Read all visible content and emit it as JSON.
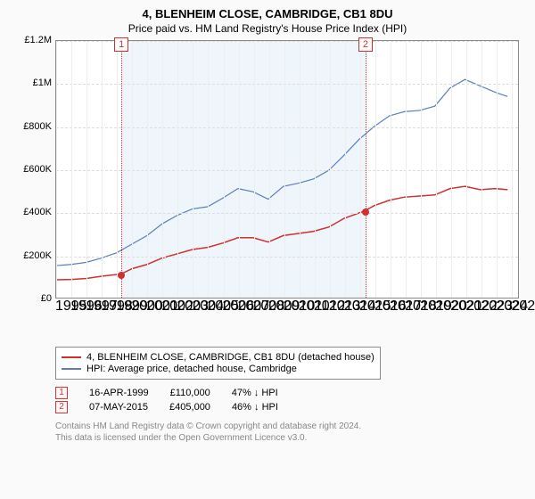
{
  "title": "4, BLENHEIM CLOSE, CAMBRIDGE, CB1 8DU",
  "subtitle": "Price paid vs. HM Land Registry's House Price Index (HPI)",
  "chart": {
    "type": "line",
    "x_years": [
      1995,
      1996,
      1997,
      1998,
      1999,
      2000,
      2001,
      2002,
      2003,
      2004,
      2005,
      2006,
      2007,
      2008,
      2009,
      2010,
      2011,
      2012,
      2013,
      2014,
      2015,
      2016,
      2017,
      2018,
      2019,
      2020,
      2021,
      2022,
      2023,
      2024,
      2025
    ],
    "xlim": [
      1995,
      2025.5
    ],
    "ylim": [
      0,
      1200000
    ],
    "ytick_step": 200000,
    "ytick_labels": [
      "£0",
      "£200K",
      "£400K",
      "£600K",
      "£800K",
      "£1M",
      "£1.2M"
    ],
    "background_color": "#ffffff",
    "grid_color": "#eeeeee",
    "grid_dash_color": "#dddddd",
    "axis_color": "#888888",
    "title_fontsize": 13,
    "subtitle_fontsize": 12,
    "axis_fontsize": 11,
    "shade_band": {
      "start_year": 1999.3,
      "end_year": 2015.35,
      "color": "#cfe2f3",
      "opacity": 0.35
    },
    "series": [
      {
        "name": "price_paid",
        "label": "4, BLENHEIM CLOSE, CAMBRIDGE, CB1 8DU (detached house)",
        "color": "#d32f2f",
        "line_width": 1.5,
        "data": [
          [
            1995,
            83000
          ],
          [
            1996,
            85000
          ],
          [
            1997,
            90000
          ],
          [
            1998,
            100000
          ],
          [
            1999.29,
            110000
          ],
          [
            2000,
            135000
          ],
          [
            2001,
            155000
          ],
          [
            2002,
            185000
          ],
          [
            2003,
            205000
          ],
          [
            2004,
            225000
          ],
          [
            2005,
            235000
          ],
          [
            2006,
            255000
          ],
          [
            2007,
            280000
          ],
          [
            2008,
            280000
          ],
          [
            2009,
            260000
          ],
          [
            2010,
            290000
          ],
          [
            2011,
            300000
          ],
          [
            2012,
            310000
          ],
          [
            2013,
            330000
          ],
          [
            2014,
            370000
          ],
          [
            2015.35,
            405000
          ],
          [
            2016,
            430000
          ],
          [
            2017,
            455000
          ],
          [
            2018,
            470000
          ],
          [
            2019,
            475000
          ],
          [
            2020,
            480000
          ],
          [
            2021,
            510000
          ],
          [
            2022,
            520000
          ],
          [
            2023,
            505000
          ],
          [
            2024,
            510000
          ],
          [
            2024.8,
            505000
          ]
        ]
      },
      {
        "name": "hpi",
        "label": "HPI: Average price, detached house, Cambridge",
        "color": "#5a7fbf",
        "line_width": 1.2,
        "data": [
          [
            1995,
            150000
          ],
          [
            1996,
            155000
          ],
          [
            1997,
            165000
          ],
          [
            1998,
            185000
          ],
          [
            1999,
            210000
          ],
          [
            2000,
            250000
          ],
          [
            2001,
            290000
          ],
          [
            2002,
            345000
          ],
          [
            2003,
            385000
          ],
          [
            2004,
            415000
          ],
          [
            2005,
            425000
          ],
          [
            2006,
            465000
          ],
          [
            2007,
            510000
          ],
          [
            2008,
            495000
          ],
          [
            2009,
            460000
          ],
          [
            2010,
            520000
          ],
          [
            2011,
            535000
          ],
          [
            2012,
            555000
          ],
          [
            2013,
            595000
          ],
          [
            2014,
            665000
          ],
          [
            2015,
            740000
          ],
          [
            2016,
            800000
          ],
          [
            2017,
            850000
          ],
          [
            2018,
            870000
          ],
          [
            2019,
            875000
          ],
          [
            2020,
            895000
          ],
          [
            2021,
            980000
          ],
          [
            2022,
            1020000
          ],
          [
            2023,
            990000
          ],
          [
            2024,
            960000
          ],
          [
            2024.8,
            940000
          ]
        ]
      }
    ],
    "markers": [
      {
        "id": "1",
        "year": 1999.29,
        "value": 110000,
        "color": "#d32f2f"
      },
      {
        "id": "2",
        "year": 2015.35,
        "value": 405000,
        "color": "#d32f2f"
      }
    ]
  },
  "legend": {
    "items": [
      {
        "color": "#d32f2f",
        "label_key": "chart.series.0.label"
      },
      {
        "color": "#5a7fbf",
        "label_key": "chart.series.1.label"
      }
    ]
  },
  "sales": [
    {
      "id": "1",
      "date": "16-APR-1999",
      "price": "£110,000",
      "pct": "47% ↓ HPI"
    },
    {
      "id": "2",
      "date": "07-MAY-2015",
      "price": "£405,000",
      "pct": "46% ↓ HPI"
    }
  ],
  "footer": {
    "line1": "Contains HM Land Registry data © Crown copyright and database right 2024.",
    "line2": "This data is licensed under the Open Government Licence v3.0."
  }
}
